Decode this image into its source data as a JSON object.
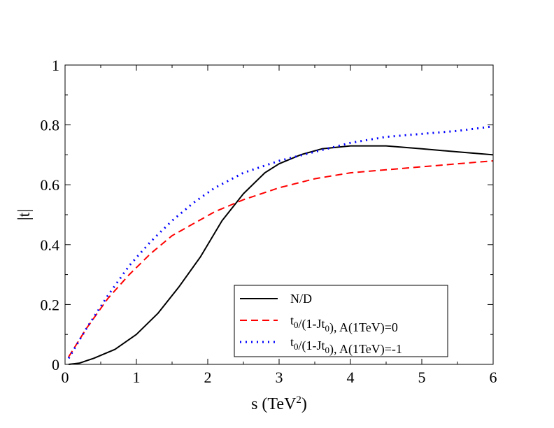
{
  "chart_data": {
    "type": "line",
    "title": "",
    "xlabel": "s (TeV",
    "xlabel_sup": "2",
    "xlabel_close": ")",
    "ylabel": "|t|",
    "xlim": [
      0,
      6
    ],
    "ylim": [
      0,
      1
    ],
    "xticks": [
      "0",
      "1",
      "2",
      "3",
      "4",
      "5",
      "6"
    ],
    "yticks": [
      "0",
      "0.2",
      "0.4",
      "0.6",
      "0.8",
      "1"
    ],
    "legend_position": "bottom-right",
    "series": [
      {
        "name": "N/D",
        "legend": {
          "parts": [
            [
              "N/D",
              ""
            ]
          ]
        },
        "color": "#000000",
        "style": "solid",
        "x": [
          0.05,
          0.2,
          0.4,
          0.7,
          1.0,
          1.3,
          1.6,
          1.9,
          2.2,
          2.5,
          2.8,
          3.0,
          3.3,
          3.6,
          4.0,
          4.5,
          5.0,
          5.5,
          6.0
        ],
        "y": [
          0.0,
          0.004,
          0.02,
          0.05,
          0.1,
          0.17,
          0.26,
          0.36,
          0.48,
          0.57,
          0.64,
          0.67,
          0.7,
          0.72,
          0.73,
          0.73,
          0.72,
          0.71,
          0.7
        ]
      },
      {
        "name": "t0/(1-Jt0), A(1TeV)=0",
        "legend": {
          "parts": [
            [
              "t",
              "0"
            ],
            [
              "/(1-Jt",
              "0"
            ],
            [
              "), A(1TeV)=0",
              ""
            ]
          ]
        },
        "color": "#ff0000",
        "style": "dashed",
        "x": [
          0.05,
          0.3,
          0.6,
          0.9,
          1.2,
          1.5,
          1.8,
          2.1,
          2.5,
          3.0,
          3.5,
          4.0,
          4.5,
          5.0,
          5.5,
          6.0
        ],
        "y": [
          0.025,
          0.12,
          0.22,
          0.3,
          0.37,
          0.43,
          0.47,
          0.51,
          0.55,
          0.59,
          0.62,
          0.64,
          0.65,
          0.66,
          0.67,
          0.68
        ]
      },
      {
        "name": "t0/(1-Jt0), A(1TeV)=-1",
        "legend": {
          "parts": [
            [
              "t",
              "0"
            ],
            [
              "/(1-Jt",
              "0"
            ],
            [
              "), A(1TeV)=-1",
              ""
            ]
          ]
        },
        "color": "#0000ff",
        "style": "dotted",
        "x": [
          0.05,
          0.3,
          0.6,
          0.9,
          1.2,
          1.5,
          1.8,
          2.1,
          2.5,
          3.0,
          3.5,
          4.0,
          4.5,
          5.0,
          5.5,
          6.0
        ],
        "y": [
          0.02,
          0.12,
          0.23,
          0.33,
          0.41,
          0.48,
          0.54,
          0.59,
          0.64,
          0.68,
          0.71,
          0.74,
          0.76,
          0.77,
          0.78,
          0.795
        ]
      }
    ]
  }
}
